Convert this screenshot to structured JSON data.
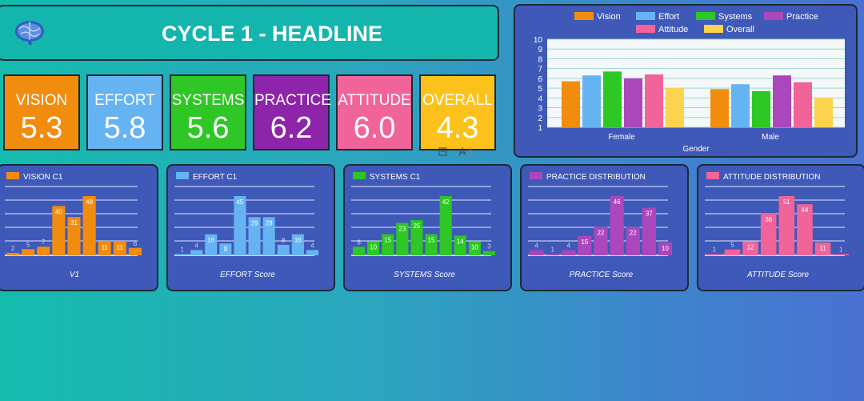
{
  "header": {
    "title": "CYCLE 1 - HEADLINE",
    "logo_icon": "brain-icon"
  },
  "tiles": [
    {
      "label": "VISION",
      "value": "5.3",
      "color": "#f28c0f"
    },
    {
      "label": "EFFORT",
      "value": "5.8",
      "color": "#66b3f2"
    },
    {
      "label": "SYSTEMS",
      "value": "5.6",
      "color": "#2ec726"
    },
    {
      "label": "PRACTICE",
      "value": "6.2",
      "color": "#8e24aa"
    },
    {
      "label": "ATTITUDE",
      "value": "6.0",
      "color": "#f0649a"
    },
    {
      "label": "OVERALL",
      "value": "4.3",
      "color": "#fcc21b"
    }
  ],
  "chart_data": [
    {
      "type": "bar",
      "categories": [
        "Female",
        "Male"
      ],
      "xlabel": "Gender",
      "ylim": [
        1,
        10
      ],
      "yticks": [
        1,
        2,
        3,
        4,
        5,
        6,
        7,
        8,
        9,
        10
      ],
      "legend_position": "top",
      "series": [
        {
          "name": "Vision",
          "color": "#f28c0f",
          "values": [
            5.7,
            4.9
          ]
        },
        {
          "name": "Effort",
          "color": "#66b3f2",
          "values": [
            6.3,
            5.4
          ]
        },
        {
          "name": "Systems",
          "color": "#2ec726",
          "values": [
            6.7,
            4.7
          ]
        },
        {
          "name": "Practice",
          "color": "#ab47bc",
          "values": [
            6.0,
            6.3
          ]
        },
        {
          "name": "Attitude",
          "color": "#f0649a",
          "values": [
            6.4,
            5.6
          ]
        },
        {
          "name": "Overall",
          "color": "#fcd34d",
          "values": [
            5.0,
            4.0
          ]
        }
      ]
    },
    {
      "type": "bar",
      "title": "VISION C1",
      "xlabel": "V1",
      "color": "#f28c0f",
      "values": [
        2,
        5,
        7,
        40,
        31,
        48,
        11,
        11,
        6
      ],
      "ymax": 48
    },
    {
      "type": "bar",
      "title": "EFFORT C1",
      "xlabel": "EFFORT Score",
      "color": "#66b3f2",
      "values": [
        1,
        4,
        16,
        9,
        45,
        29,
        29,
        8,
        16,
        4
      ],
      "ymax": 45
    },
    {
      "type": "bar",
      "title": "SYSTEMS C1",
      "xlabel": "SYSTEMS Score",
      "color": "#2ec726",
      "values": [
        6,
        10,
        15,
        23,
        25,
        15,
        42,
        14,
        10,
        3
      ],
      "ymax": 42
    },
    {
      "type": "bar",
      "title": "PRACTICE DISTRIBUTION",
      "xlabel": "PRACTICE Score",
      "color": "#ab47bc",
      "values": [
        4,
        1,
        4,
        15,
        22,
        46,
        22,
        37,
        10
      ],
      "ymax": 46
    },
    {
      "type": "bar",
      "title": "ATTITUDE DISTRIBUTION",
      "xlabel": "ATTITUDE Score",
      "color": "#f0649a",
      "values": [
        1,
        5,
        12,
        36,
        51,
        44,
        11,
        1
      ],
      "ymax": 51
    }
  ]
}
